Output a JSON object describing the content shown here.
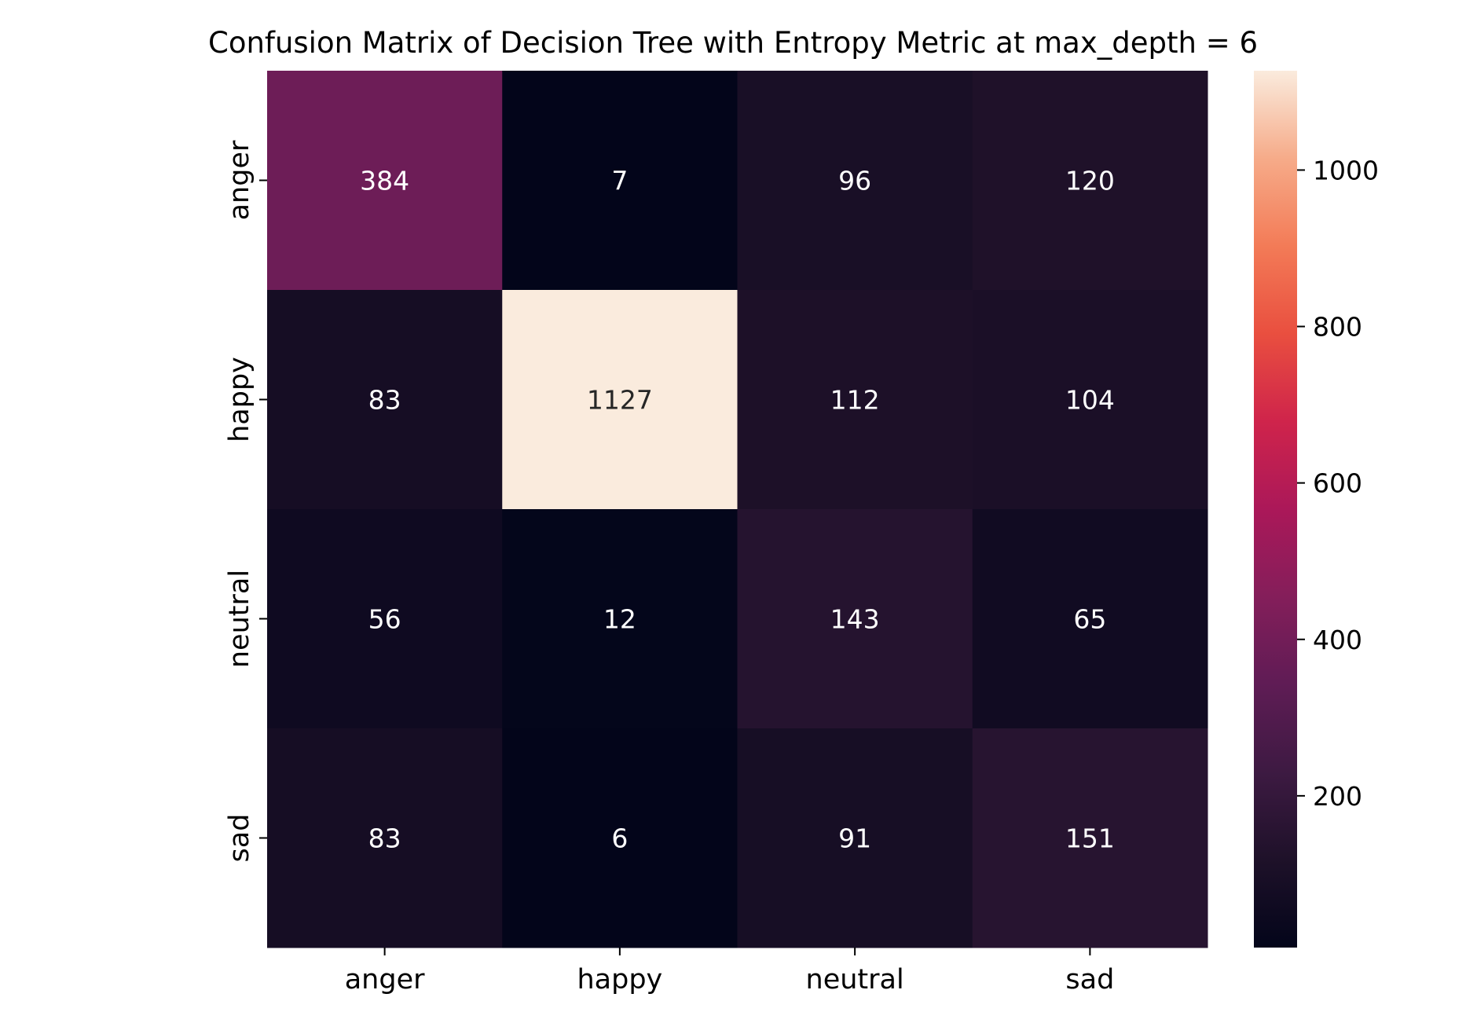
{
  "chart_data": {
    "type": "heatmap",
    "title": "Confusion Matrix of Decision Tree with Entropy Metric at max_depth = 6",
    "xlabel": "",
    "ylabel": "",
    "x_categories": [
      "anger",
      "happy",
      "neutral",
      "sad"
    ],
    "y_categories": [
      "anger",
      "happy",
      "neutral",
      "sad"
    ],
    "values": [
      [
        384,
        7,
        96,
        120
      ],
      [
        83,
        1127,
        112,
        104
      ],
      [
        56,
        12,
        143,
        65
      ],
      [
        83,
        6,
        91,
        151
      ]
    ],
    "colorbar": {
      "colormap": "rocket",
      "range": [
        6,
        1127
      ],
      "ticks": [
        200,
        400,
        600,
        800,
        1000
      ]
    },
    "grid": false,
    "legend": "colorbar-right"
  }
}
